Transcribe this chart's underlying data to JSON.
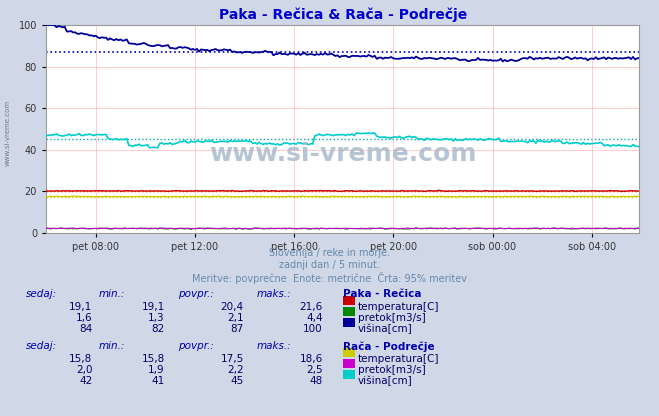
{
  "title": "Paka - Rečica & Rača - Podrečje",
  "title_color": "#0000cc",
  "bg_color": "#d0d8e8",
  "plot_bg_color": "#ffffff",
  "subtitle_lines": [
    "Slovenija / reke in morje.",
    "zadnji dan / 5 minut.",
    "Meritve: povprečne  Enote: metrične  Črta: 95% meritev"
  ],
  "xlabel_ticks": [
    "pet 08:00",
    "pet 12:00",
    "pet 16:00",
    "pet 20:00",
    "sob 00:00",
    "sob 04:00"
  ],
  "ylim": [
    0,
    100
  ],
  "yticks": [
    0,
    20,
    40,
    60,
    80,
    100
  ],
  "num_points": 288,
  "paka_recica": {
    "label": "Paka - Rečica",
    "temperatura_color": "#cc0000",
    "temperatura_avg": 20.4,
    "temperatura_dotted_color": "#cc0000",
    "pretok_color": "#008800",
    "pretok_avg": 2.1,
    "visina_color": "#000099",
    "visina_avg": 87,
    "visina_dotted_color": "#0000aa"
  },
  "raca_podrecje": {
    "label": "Rača - Podrečje",
    "temperatura_color": "#cccc00",
    "temperatura_avg": 17.5,
    "pretok_color": "#cc00cc",
    "pretok_avg": 2.2,
    "visina_color": "#00cccc",
    "visina_avg": 45,
    "visina_dotted_color": "#00aaaa"
  },
  "watermark": "www.si-vreme.com",
  "watermark_color": "#aabbcc",
  "table_header_color": "#0000aa",
  "table_value_color": "#000066",
  "paka_table": {
    "sedaj": [
      "19,1",
      "1,6",
      "84"
    ],
    "min": [
      "19,1",
      "1,3",
      "82"
    ],
    "povpr": [
      "20,4",
      "2,1",
      "87"
    ],
    "maks": [
      "21,6",
      "4,4",
      "100"
    ],
    "labels": [
      "temperatura[C]",
      "pretok[m3/s]",
      "višina[cm]"
    ],
    "colors": [
      "#cc0000",
      "#008800",
      "#000099"
    ]
  },
  "raca_table": {
    "sedaj": [
      "15,8",
      "2,0",
      "42"
    ],
    "min": [
      "15,8",
      "1,9",
      "41"
    ],
    "povpr": [
      "17,5",
      "2,2",
      "45"
    ],
    "maks": [
      "18,6",
      "2,5",
      "48"
    ],
    "labels": [
      "temperatura[C]",
      "pretok[m3/s]",
      "višina[cm]"
    ],
    "colors": [
      "#cccc00",
      "#cc00cc",
      "#00cccc"
    ]
  }
}
